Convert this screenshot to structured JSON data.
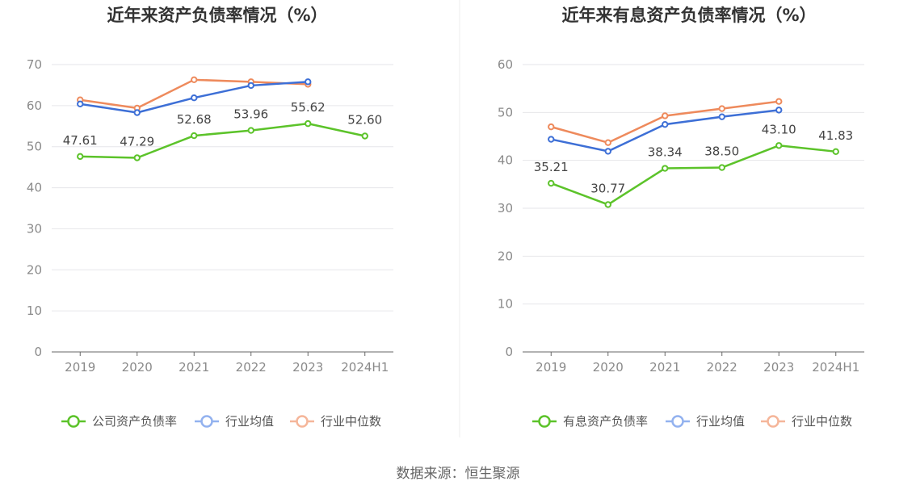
{
  "source": "数据来源：恒生聚源",
  "chart_data": [
    {
      "type": "line",
      "title": "近年来资产负债率情况（%）",
      "categories": [
        "2019",
        "2020",
        "2021",
        "2022",
        "2023",
        "2024H1"
      ],
      "ylim": [
        0,
        70
      ],
      "yticks": [
        0,
        10,
        20,
        30,
        40,
        50,
        60,
        70
      ],
      "grid": true,
      "legend_position": "bottom",
      "series": [
        {
          "name": "公司资产负债率",
          "color": "#5cc32a",
          "values": [
            47.61,
            47.29,
            52.68,
            53.96,
            55.62,
            52.6
          ],
          "labels": [
            "47.61",
            "47.29",
            "52.68",
            "53.96",
            "55.62",
            "52.60"
          ]
        },
        {
          "name": "行业均值",
          "color": "#3d6fd6",
          "values": [
            60.4,
            58.3,
            61.9,
            64.9,
            65.8,
            null
          ]
        },
        {
          "name": "行业中位数",
          "color": "#ee8a5c",
          "values": [
            61.4,
            59.4,
            66.3,
            65.8,
            65.2,
            null
          ]
        }
      ]
    },
    {
      "type": "line",
      "title": "近年来有息资产负债率情况（%）",
      "categories": [
        "2019",
        "2020",
        "2021",
        "2022",
        "2023",
        "2024H1"
      ],
      "ylim": [
        0,
        60
      ],
      "yticks": [
        0,
        10,
        20,
        30,
        40,
        50,
        60
      ],
      "grid": true,
      "legend_position": "bottom",
      "series": [
        {
          "name": "有息资产负债率",
          "color": "#5cc32a",
          "values": [
            35.21,
            30.77,
            38.34,
            38.5,
            43.1,
            41.83
          ],
          "labels": [
            "35.21",
            "30.77",
            "38.34",
            "38.50",
            "43.10",
            "41.83"
          ]
        },
        {
          "name": "行业均值",
          "color": "#3d6fd6",
          "values": [
            44.4,
            41.9,
            47.5,
            49.1,
            50.5,
            null
          ]
        },
        {
          "name": "行业中位数",
          "color": "#ee8a5c",
          "values": [
            47.0,
            43.7,
            49.3,
            50.8,
            52.3,
            null
          ]
        }
      ]
    }
  ]
}
